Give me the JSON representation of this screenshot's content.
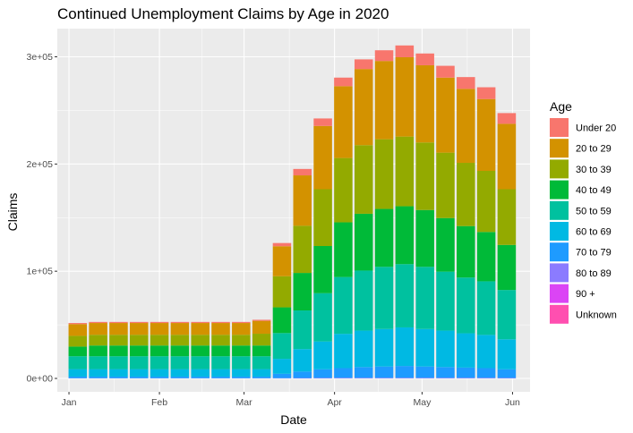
{
  "chart_data": {
    "type": "bar",
    "stacked": true,
    "title": "Continued Unemployment Claims by Age in 2020",
    "xlabel": "Date",
    "ylabel": "Claims",
    "ylim": [
      0,
      330000
    ],
    "y_ticks": [
      {
        "value": 0,
        "label": "0e+00"
      },
      {
        "value": 100000,
        "label": "1e+05"
      },
      {
        "value": 200000,
        "label": "2e+05"
      },
      {
        "value": 300000,
        "label": "3e+05"
      }
    ],
    "x_range": [
      "2019-12-28",
      "2020-06-07"
    ],
    "x_ticks": [
      {
        "date": "2020-01-01",
        "label": "Jan"
      },
      {
        "date": "2020-02-01",
        "label": "Feb"
      },
      {
        "date": "2020-03-01",
        "label": "Mar"
      },
      {
        "date": "2020-04-01",
        "label": "Apr"
      },
      {
        "date": "2020-05-01",
        "label": "May"
      },
      {
        "date": "2020-06-01",
        "label": "Jun"
      }
    ],
    "categories": [
      "2020-01-04",
      "2020-01-11",
      "2020-01-18",
      "2020-01-25",
      "2020-02-01",
      "2020-02-08",
      "2020-02-15",
      "2020-02-22",
      "2020-02-29",
      "2020-03-07",
      "2020-03-14",
      "2020-03-21",
      "2020-03-28",
      "2020-04-04",
      "2020-04-11",
      "2020-04-18",
      "2020-04-25",
      "2020-05-02",
      "2020-05-09",
      "2020-05-16",
      "2020-05-23",
      "2020-05-30"
    ],
    "legend_title": "Age",
    "legend_position": "right",
    "grid": true,
    "series": [
      {
        "name": "Under 20",
        "color": "#F8766D",
        "values": [
          1000,
          1000,
          1000,
          1000,
          1000,
          1000,
          1000,
          1000,
          1000,
          1000,
          3000,
          6000,
          7000,
          8000,
          9000,
          10000,
          11000,
          11000,
          11000,
          11000,
          11000,
          10000
        ]
      },
      {
        "name": "20 to 29",
        "color": "#D39200",
        "values": [
          11000,
          11000,
          11000,
          11000,
          11000,
          11000,
          11000,
          11000,
          11000,
          12000,
          28000,
          47000,
          59000,
          67000,
          71000,
          73000,
          74000,
          72000,
          70000,
          69000,
          67000,
          61000
        ]
      },
      {
        "name": "30 to 39",
        "color": "#93AA00",
        "values": [
          10000,
          10000,
          10000,
          10000,
          10000,
          10000,
          10000,
          10000,
          10000,
          11000,
          29000,
          44000,
          53000,
          60000,
          64000,
          65000,
          65000,
          63000,
          61000,
          59000,
          57000,
          52000
        ]
      },
      {
        "name": "40 to 49",
        "color": "#00BA38",
        "values": [
          9000,
          10000,
          10000,
          10000,
          10000,
          10000,
          10000,
          10000,
          10000,
          10000,
          24000,
          35000,
          44000,
          51000,
          53000,
          54000,
          54000,
          53000,
          50000,
          48000,
          46000,
          42000
        ]
      },
      {
        "name": "50 to 59",
        "color": "#00C19F",
        "values": [
          12000,
          12000,
          12000,
          12000,
          12000,
          12000,
          12000,
          12000,
          12000,
          12000,
          24000,
          36000,
          45000,
          53000,
          56000,
          58000,
          59000,
          58000,
          55000,
          52000,
          50000,
          46000
        ]
      },
      {
        "name": "60 to 69",
        "color": "#00B9E3",
        "values": [
          7000,
          7000,
          7000,
          7000,
          7000,
          7000,
          7000,
          7000,
          7000,
          7000,
          14000,
          21000,
          26000,
          32000,
          34000,
          35000,
          36000,
          35000,
          34000,
          32000,
          31000,
          28000
        ]
      },
      {
        "name": "70 to 79",
        "color": "#619CFF",
        "values": [
          1500,
          1500,
          1500,
          1500,
          1500,
          1500,
          1500,
          1500,
          1500,
          1500,
          4000,
          6000,
          8000,
          9000,
          10000,
          10500,
          11000,
          10500,
          10000,
          9500,
          9000,
          8000
        ]
      },
      {
        "name": "80 to 89",
        "color": "#DB72FB",
        "values": [
          200,
          200,
          200,
          200,
          200,
          200,
          200,
          200,
          200,
          200,
          300,
          400,
          500,
          600,
          600,
          600,
          600,
          600,
          600,
          600,
          600,
          500
        ]
      },
      {
        "name": "90 +",
        "color": "#DB72FB",
        "values": [
          0,
          0,
          0,
          0,
          0,
          0,
          0,
          0,
          0,
          0,
          0,
          0,
          0,
          0,
          0,
          0,
          0,
          0,
          0,
          0,
          0,
          0
        ]
      },
      {
        "name": "Unknown",
        "color": "#FF61C3",
        "values": [
          0,
          0,
          0,
          0,
          0,
          0,
          0,
          0,
          0,
          0,
          0,
          0,
          0,
          0,
          0,
          0,
          0,
          0,
          0,
          0,
          0,
          0
        ]
      }
    ],
    "legend": [
      {
        "label": "Under 20",
        "color": "#F8766D"
      },
      {
        "label": "20 to 29",
        "color": "#D39200"
      },
      {
        "label": "30 to 39",
        "color": "#93AA00"
      },
      {
        "label": "40 to 49",
        "color": "#00BA38"
      },
      {
        "label": "50 to 59",
        "color": "#00C19F"
      },
      {
        "label": "60 to 69",
        "color": "#00B9E3"
      },
      {
        "label": "70 to 79",
        "color": "#1E9BFF"
      },
      {
        "label": "80 to 89",
        "color": "#8B7BFF"
      },
      {
        "label": "90 +",
        "color": "#DB44F5"
      },
      {
        "label": "Unknown",
        "color": "#FF4FB0"
      }
    ]
  }
}
